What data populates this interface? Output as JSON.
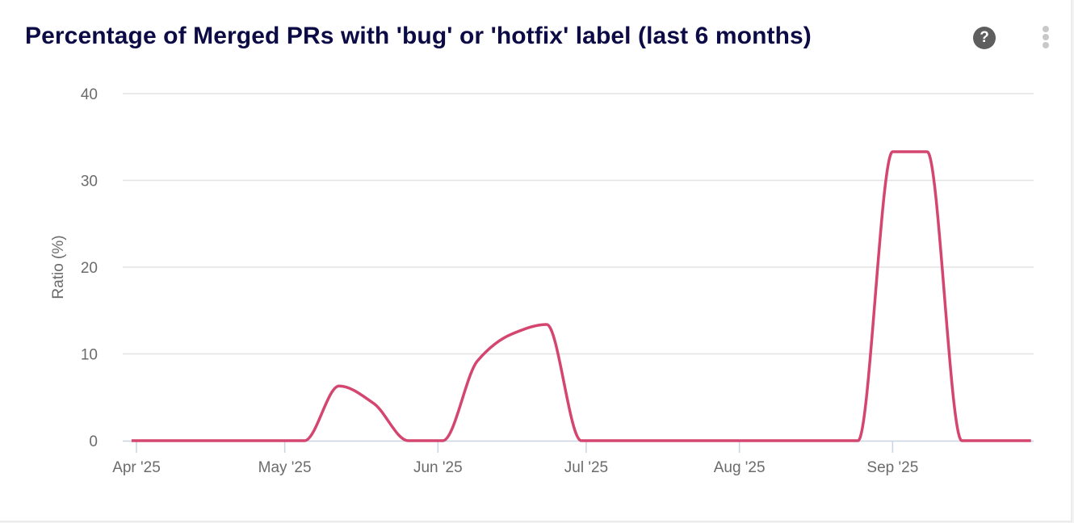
{
  "card": {
    "title": "Percentage of Merged PRs with 'bug' or 'hotfix' label (last 6 months)",
    "help_icon": "question-circle-icon",
    "menu_icon": "kebab-vertical-icon"
  },
  "chart_data": {
    "type": "line",
    "title": "Percentage of Merged PRs with 'bug' or 'hotfix' label (last 6 months)",
    "ylabel": "Ratio (%)",
    "xlabel": "",
    "ylim": [
      0,
      40
    ],
    "yticks": [
      "0",
      "10",
      "20",
      "30",
      "40"
    ],
    "xticks": [
      {
        "label": "Apr '25",
        "date": "2025-04-01"
      },
      {
        "label": "May '25",
        "date": "2025-05-01"
      },
      {
        "label": "Jun '25",
        "date": "2025-06-01"
      },
      {
        "label": "Jul '25",
        "date": "2025-07-01"
      },
      {
        "label": "Aug '25",
        "date": "2025-08-01"
      },
      {
        "label": "Sep '25",
        "date": "2025-09-01"
      }
    ],
    "grid": true,
    "color": "#d4456f",
    "x": [
      "2025-03-31",
      "2025-04-07",
      "2025-04-14",
      "2025-04-21",
      "2025-04-28",
      "2025-05-05",
      "2025-05-12",
      "2025-05-19",
      "2025-05-26",
      "2025-06-02",
      "2025-06-09",
      "2025-06-16",
      "2025-06-23",
      "2025-06-30",
      "2025-07-07",
      "2025-07-14",
      "2025-07-21",
      "2025-07-28",
      "2025-08-04",
      "2025-08-11",
      "2025-08-18",
      "2025-08-25",
      "2025-09-01",
      "2025-09-08",
      "2025-09-15",
      "2025-09-22",
      "2025-09-29"
    ],
    "values": [
      0,
      0,
      0,
      0,
      0,
      0,
      6.3,
      4.3,
      0,
      0,
      9.2,
      12.3,
      13.4,
      0,
      0,
      0,
      0,
      0,
      0,
      0,
      0,
      0,
      33.3,
      33.3,
      0,
      0,
      0
    ]
  }
}
